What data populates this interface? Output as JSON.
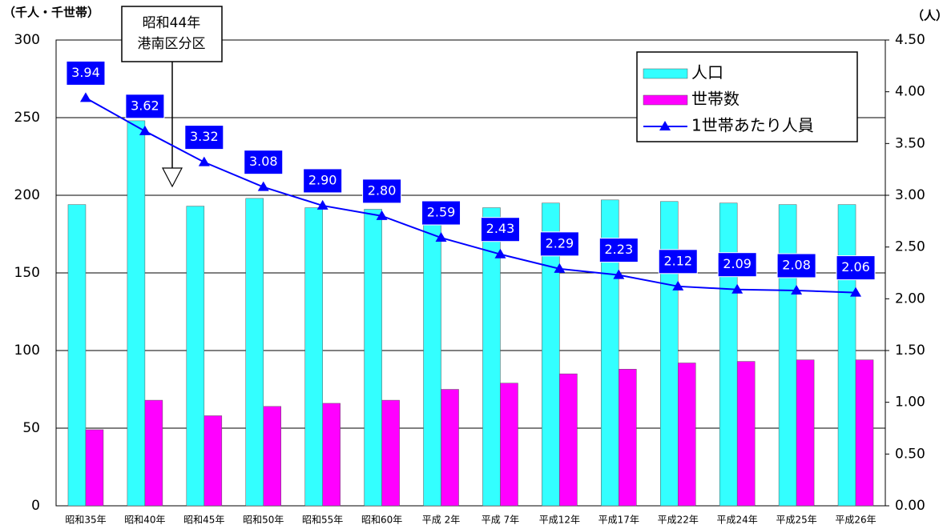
{
  "chart_data": {
    "type": "bar",
    "y_label": "（千人・千世帯）",
    "y2_label": "（人）",
    "annotation": [
      "昭和44年",
      "港南区分区"
    ],
    "categories": [
      "昭和35年",
      "昭和40年",
      "昭和45年",
      "昭和50年",
      "昭和55年",
      "昭和60年",
      "平成 2年",
      "平成 7年",
      "平成12年",
      "平成17年",
      "平成22年",
      "平成24年",
      "平成25年",
      "平成26年"
    ],
    "series": [
      {
        "name": "人口",
        "color": "#33ffff",
        "values": [
          194,
          248,
          193,
          198,
          192,
          191,
          194,
          192,
          195,
          197,
          196,
          195,
          194,
          194
        ]
      },
      {
        "name": "世帯数",
        "color": "#ff00ff",
        "values": [
          49,
          68,
          58,
          64,
          66,
          68,
          75,
          79,
          85,
          88,
          92,
          93,
          94,
          94
        ]
      },
      {
        "name": "1世帯あたり人員",
        "color": "#0000ff",
        "type": "line",
        "axis": "y2",
        "values": [
          3.94,
          3.62,
          3.32,
          3.08,
          2.9,
          2.8,
          2.59,
          2.43,
          2.29,
          2.23,
          2.12,
          2.09,
          2.08,
          2.06
        ],
        "value_labels": [
          "3.94",
          "3.62",
          "3.32",
          "3.08",
          "2.90",
          "2.80",
          "2.59",
          "2.43",
          "2.29",
          "2.23",
          "2.12",
          "2.09",
          "2.08",
          "2.06"
        ]
      }
    ],
    "ylim": [
      0,
      300
    ],
    "yticks": [
      0,
      50,
      100,
      150,
      200,
      250,
      300
    ],
    "y2lim": [
      0,
      4.5
    ],
    "y2ticks": [
      {
        "value": 0,
        "label": "0.00"
      },
      {
        "value": 0.5,
        "label": "0.50"
      },
      {
        "value": 1,
        "label": "1.00"
      },
      {
        "value": 1.5,
        "label": "1.50"
      },
      {
        "value": 2,
        "label": "2.00"
      },
      {
        "value": 2.5,
        "label": "2.50"
      },
      {
        "value": 3,
        "label": "3.00"
      },
      {
        "value": 3.5,
        "label": "3.50"
      },
      {
        "value": 4,
        "label": "4.00"
      },
      {
        "value": 4.5,
        "label": "4.50"
      }
    ],
    "grid": true,
    "legend": "upper right"
  }
}
